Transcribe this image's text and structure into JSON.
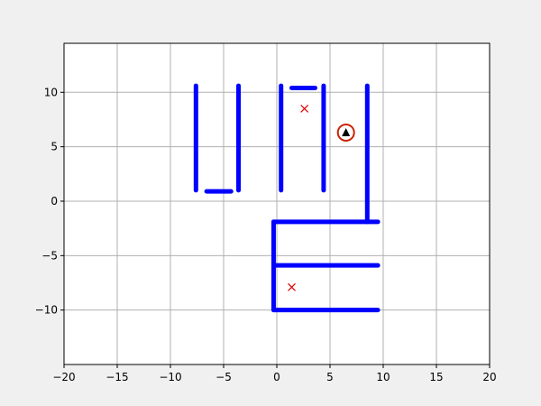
{
  "chart_data": {
    "type": "scatter",
    "title": "",
    "xlabel": "",
    "ylabel": "",
    "xlim": [
      -20,
      20
    ],
    "ylim": [
      -15,
      14.5
    ],
    "grid": true,
    "x_ticks": [
      -20,
      -15,
      -10,
      -5,
      0,
      5,
      10,
      15,
      20
    ],
    "x_tick_labels": [
      "−20",
      "−15",
      "−10",
      "−5",
      "0",
      "5",
      "10",
      "15",
      "20"
    ],
    "y_ticks": [
      -10,
      -5,
      0,
      5,
      10
    ],
    "y_tick_labels": [
      "−10",
      "−5",
      "0",
      "5",
      "10"
    ],
    "walls": [
      {
        "x": [
          -7.6,
          -7.6
        ],
        "y": [
          1.0,
          10.6
        ]
      },
      {
        "x": [
          -6.6,
          -4.3
        ],
        "y": [
          0.9,
          0.9
        ]
      },
      {
        "x": [
          -3.6,
          -3.6
        ],
        "y": [
          1.0,
          10.6
        ]
      },
      {
        "x": [
          0.4,
          0.4
        ],
        "y": [
          1.0,
          10.6
        ]
      },
      {
        "x": [
          1.4,
          3.6
        ],
        "y": [
          10.4,
          10.4
        ]
      },
      {
        "x": [
          4.4,
          4.4
        ],
        "y": [
          1.0,
          10.6
        ]
      },
      {
        "x": [
          8.5,
          8.5
        ],
        "y": [
          -1.9,
          10.6
        ]
      },
      {
        "x": [
          -0.3,
          -0.3
        ],
        "y": [
          -10.0,
          -1.9
        ]
      },
      {
        "x": [
          -0.3,
          9.5
        ],
        "y": [
          -1.9,
          -1.9
        ]
      },
      {
        "x": [
          -0.3,
          9.5
        ],
        "y": [
          -5.9,
          -5.9
        ]
      },
      {
        "x": [
          -0.3,
          9.5
        ],
        "y": [
          -10.0,
          -10.0
        ]
      }
    ],
    "goals": [
      {
        "x": 2.6,
        "y": 8.5
      },
      {
        "x": 1.4,
        "y": -7.9
      }
    ],
    "agent": {
      "x": 6.5,
      "y": 6.3,
      "heading": "up"
    },
    "colors": {
      "wall": "#0000ff",
      "goal_marker": "#dd0000",
      "agent_ring": "#cc2200",
      "agent_triangle": "#000000",
      "grid": "#b0b0b0",
      "axes_background": "#ffffff",
      "figure_background": "#f0f0f0"
    }
  }
}
